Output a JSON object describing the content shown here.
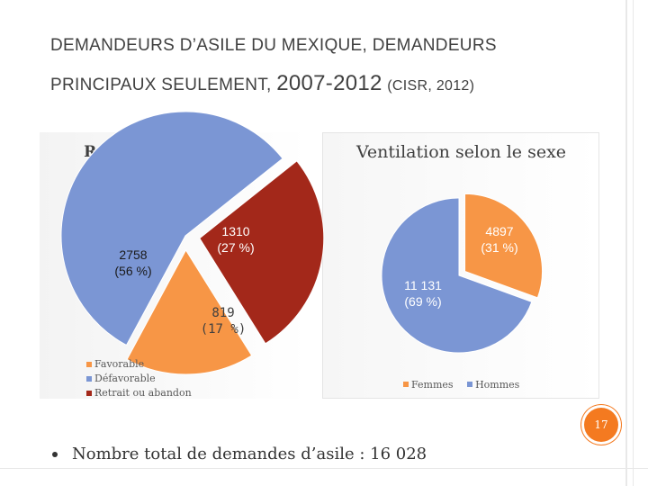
{
  "slide": {
    "title_line1": "Demandeurs d’asile du Mexique, demandeurs",
    "title_line2_a": "principaux seulement,",
    "title_line2_b": "2007-2012",
    "title_line2_c": "(CISR, 2012)",
    "page_number": "17",
    "bullet_text": "Nombre total de demandes d’asile : 16 028"
  },
  "colors": {
    "favorable": "#f79646",
    "defavorable": "#7b96d4",
    "retrait": "#a3281a",
    "femmes": "#f79646",
    "hommes": "#7b96d4",
    "page_badge": "#f47a20"
  },
  "chart_data": [
    {
      "type": "pie",
      "title": "Résultats - Femmes",
      "legend_position": "bottom-left",
      "slices": [
        {
          "name": "Favorable",
          "value": 819,
          "percent": 17,
          "label_value": "819",
          "label_percent": "(17 %)"
        },
        {
          "name": "Défavorable",
          "value": 2758,
          "percent": 56,
          "label_value": "2758",
          "label_percent": "(56 %)"
        },
        {
          "name": "Retrait ou abandon",
          "value": 1310,
          "percent": 27,
          "label_value": "1310",
          "label_percent": "(27 %)"
        }
      ]
    },
    {
      "type": "pie",
      "title": "Ventilation selon le sexe",
      "legend_position": "bottom",
      "slices": [
        {
          "name": "Femmes",
          "value": 4897,
          "percent": 31,
          "label_value": "4897",
          "label_percent": "(31 %)"
        },
        {
          "name": "Hommes",
          "value": 11131,
          "percent": 69,
          "label_value": "11 131",
          "label_percent": "(69 %)"
        }
      ]
    }
  ]
}
